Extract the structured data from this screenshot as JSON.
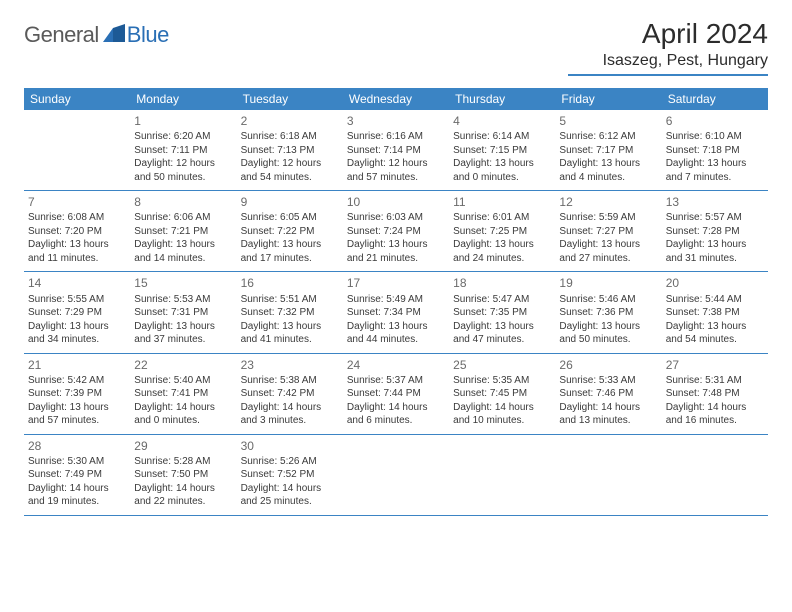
{
  "logo": {
    "general": "General",
    "blue": "Blue"
  },
  "title": "April 2024",
  "location": "Isaszeg, Pest, Hungary",
  "colors": {
    "header_bg": "#3b84c4",
    "header_text": "#ffffff",
    "row_border": "#3b84c4",
    "logo_blue": "#2a6fb5",
    "logo_gray": "#5a5a5a",
    "text": "#3a3a3a",
    "daynum": "#6a6a6a"
  },
  "day_names": [
    "Sunday",
    "Monday",
    "Tuesday",
    "Wednesday",
    "Thursday",
    "Friday",
    "Saturday"
  ],
  "weeks": [
    [
      {
        "num": "",
        "lines": []
      },
      {
        "num": "1",
        "lines": [
          "Sunrise: 6:20 AM",
          "Sunset: 7:11 PM",
          "Daylight: 12 hours",
          "and 50 minutes."
        ]
      },
      {
        "num": "2",
        "lines": [
          "Sunrise: 6:18 AM",
          "Sunset: 7:13 PM",
          "Daylight: 12 hours",
          "and 54 minutes."
        ]
      },
      {
        "num": "3",
        "lines": [
          "Sunrise: 6:16 AM",
          "Sunset: 7:14 PM",
          "Daylight: 12 hours",
          "and 57 minutes."
        ]
      },
      {
        "num": "4",
        "lines": [
          "Sunrise: 6:14 AM",
          "Sunset: 7:15 PM",
          "Daylight: 13 hours",
          "and 0 minutes."
        ]
      },
      {
        "num": "5",
        "lines": [
          "Sunrise: 6:12 AM",
          "Sunset: 7:17 PM",
          "Daylight: 13 hours",
          "and 4 minutes."
        ]
      },
      {
        "num": "6",
        "lines": [
          "Sunrise: 6:10 AM",
          "Sunset: 7:18 PM",
          "Daylight: 13 hours",
          "and 7 minutes."
        ]
      }
    ],
    [
      {
        "num": "7",
        "lines": [
          "Sunrise: 6:08 AM",
          "Sunset: 7:20 PM",
          "Daylight: 13 hours",
          "and 11 minutes."
        ]
      },
      {
        "num": "8",
        "lines": [
          "Sunrise: 6:06 AM",
          "Sunset: 7:21 PM",
          "Daylight: 13 hours",
          "and 14 minutes."
        ]
      },
      {
        "num": "9",
        "lines": [
          "Sunrise: 6:05 AM",
          "Sunset: 7:22 PM",
          "Daylight: 13 hours",
          "and 17 minutes."
        ]
      },
      {
        "num": "10",
        "lines": [
          "Sunrise: 6:03 AM",
          "Sunset: 7:24 PM",
          "Daylight: 13 hours",
          "and 21 minutes."
        ]
      },
      {
        "num": "11",
        "lines": [
          "Sunrise: 6:01 AM",
          "Sunset: 7:25 PM",
          "Daylight: 13 hours",
          "and 24 minutes."
        ]
      },
      {
        "num": "12",
        "lines": [
          "Sunrise: 5:59 AM",
          "Sunset: 7:27 PM",
          "Daylight: 13 hours",
          "and 27 minutes."
        ]
      },
      {
        "num": "13",
        "lines": [
          "Sunrise: 5:57 AM",
          "Sunset: 7:28 PM",
          "Daylight: 13 hours",
          "and 31 minutes."
        ]
      }
    ],
    [
      {
        "num": "14",
        "lines": [
          "Sunrise: 5:55 AM",
          "Sunset: 7:29 PM",
          "Daylight: 13 hours",
          "and 34 minutes."
        ]
      },
      {
        "num": "15",
        "lines": [
          "Sunrise: 5:53 AM",
          "Sunset: 7:31 PM",
          "Daylight: 13 hours",
          "and 37 minutes."
        ]
      },
      {
        "num": "16",
        "lines": [
          "Sunrise: 5:51 AM",
          "Sunset: 7:32 PM",
          "Daylight: 13 hours",
          "and 41 minutes."
        ]
      },
      {
        "num": "17",
        "lines": [
          "Sunrise: 5:49 AM",
          "Sunset: 7:34 PM",
          "Daylight: 13 hours",
          "and 44 minutes."
        ]
      },
      {
        "num": "18",
        "lines": [
          "Sunrise: 5:47 AM",
          "Sunset: 7:35 PM",
          "Daylight: 13 hours",
          "and 47 minutes."
        ]
      },
      {
        "num": "19",
        "lines": [
          "Sunrise: 5:46 AM",
          "Sunset: 7:36 PM",
          "Daylight: 13 hours",
          "and 50 minutes."
        ]
      },
      {
        "num": "20",
        "lines": [
          "Sunrise: 5:44 AM",
          "Sunset: 7:38 PM",
          "Daylight: 13 hours",
          "and 54 minutes."
        ]
      }
    ],
    [
      {
        "num": "21",
        "lines": [
          "Sunrise: 5:42 AM",
          "Sunset: 7:39 PM",
          "Daylight: 13 hours",
          "and 57 minutes."
        ]
      },
      {
        "num": "22",
        "lines": [
          "Sunrise: 5:40 AM",
          "Sunset: 7:41 PM",
          "Daylight: 14 hours",
          "and 0 minutes."
        ]
      },
      {
        "num": "23",
        "lines": [
          "Sunrise: 5:38 AM",
          "Sunset: 7:42 PM",
          "Daylight: 14 hours",
          "and 3 minutes."
        ]
      },
      {
        "num": "24",
        "lines": [
          "Sunrise: 5:37 AM",
          "Sunset: 7:44 PM",
          "Daylight: 14 hours",
          "and 6 minutes."
        ]
      },
      {
        "num": "25",
        "lines": [
          "Sunrise: 5:35 AM",
          "Sunset: 7:45 PM",
          "Daylight: 14 hours",
          "and 10 minutes."
        ]
      },
      {
        "num": "26",
        "lines": [
          "Sunrise: 5:33 AM",
          "Sunset: 7:46 PM",
          "Daylight: 14 hours",
          "and 13 minutes."
        ]
      },
      {
        "num": "27",
        "lines": [
          "Sunrise: 5:31 AM",
          "Sunset: 7:48 PM",
          "Daylight: 14 hours",
          "and 16 minutes."
        ]
      }
    ],
    [
      {
        "num": "28",
        "lines": [
          "Sunrise: 5:30 AM",
          "Sunset: 7:49 PM",
          "Daylight: 14 hours",
          "and 19 minutes."
        ]
      },
      {
        "num": "29",
        "lines": [
          "Sunrise: 5:28 AM",
          "Sunset: 7:50 PM",
          "Daylight: 14 hours",
          "and 22 minutes."
        ]
      },
      {
        "num": "30",
        "lines": [
          "Sunrise: 5:26 AM",
          "Sunset: 7:52 PM",
          "Daylight: 14 hours",
          "and 25 minutes."
        ]
      },
      {
        "num": "",
        "lines": []
      },
      {
        "num": "",
        "lines": []
      },
      {
        "num": "",
        "lines": []
      },
      {
        "num": "",
        "lines": []
      }
    ]
  ]
}
